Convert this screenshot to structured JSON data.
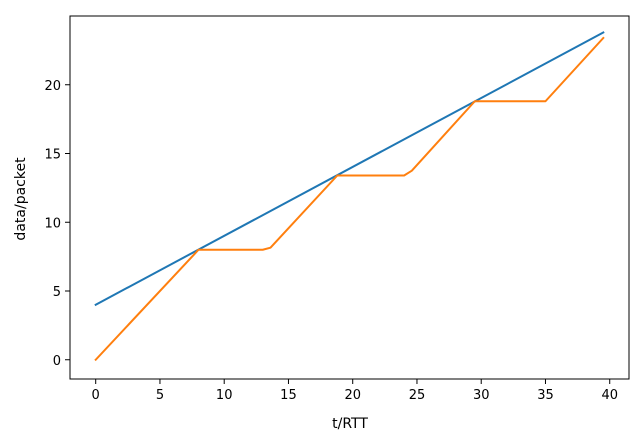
{
  "chart_data": {
    "type": "line",
    "title": "",
    "xlabel": "t/RTT",
    "ylabel": "data/packet",
    "xlim": [
      -2.0,
      41.5
    ],
    "ylim": [
      -1.4,
      25.0
    ],
    "xticks": [
      0,
      5,
      10,
      15,
      20,
      25,
      30,
      35,
      40
    ],
    "yticks": [
      0,
      5,
      10,
      15,
      20
    ],
    "grid": false,
    "legend": "none",
    "series": [
      {
        "color": "#1f77b4",
        "x": [
          0,
          39.5
        ],
        "y": [
          4.0,
          23.8
        ]
      },
      {
        "color": "#ff7f0e",
        "x": [
          0,
          8.0,
          13.0,
          13.6,
          18.8,
          24.0,
          24.6,
          29.5,
          35.0,
          39.5
        ],
        "y": [
          0.0,
          8.0,
          8.0,
          8.15,
          13.4,
          13.4,
          13.75,
          18.8,
          18.8,
          23.4
        ]
      }
    ]
  }
}
